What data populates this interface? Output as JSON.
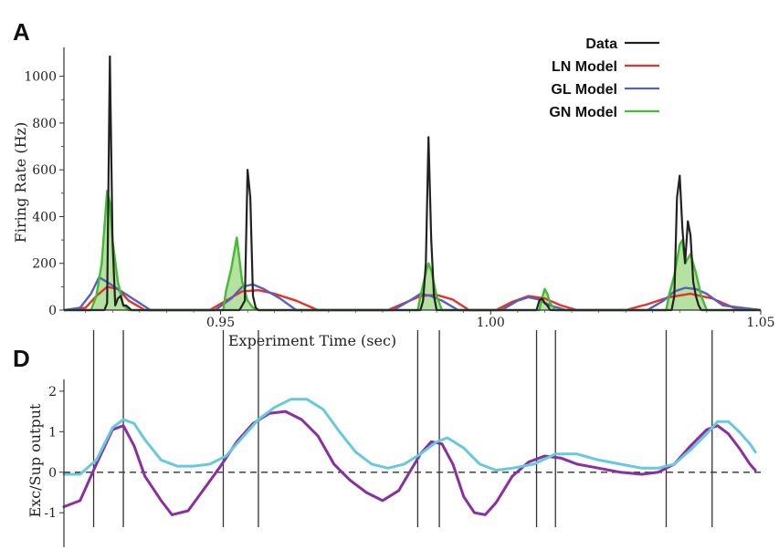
{
  "colors": {
    "data": "#222222",
    "ln": "#e8302a",
    "gl": "#5560c0",
    "gn": "#44bb33",
    "gn_fill": "#a8dc90",
    "exc": "#8a2fa0",
    "sup": "#66c9dd",
    "axis": "#333333"
  },
  "chart_data": [
    {
      "panel": "A",
      "type": "line",
      "xlabel": "Experiment Time (sec)",
      "ylabel": "Firing Rate (Hz)",
      "xlim": [
        0.921,
        1.05
      ],
      "ylim": [
        0,
        1100
      ],
      "x_ticks": [
        0.95,
        1.0,
        1.05
      ],
      "x_tick_labels": [
        "0.95",
        "1.00",
        "1.05"
      ],
      "y_ticks": [
        0,
        200,
        400,
        600,
        800,
        1000
      ],
      "y_tick_labels": [
        "0",
        "200",
        "400",
        "600",
        "800",
        "1000"
      ],
      "legend": {
        "position": "top-right",
        "entries": [
          "Data",
          "LN Model",
          "GL Model",
          "GN Model"
        ]
      },
      "series": [
        {
          "name": "Data",
          "color": "#222222",
          "x": [
            0.9285,
            0.929,
            0.9295,
            0.93,
            0.9305,
            0.931,
            0.9315,
            0.932,
            0.9325,
            0.933,
            0.9335,
            0.9535,
            0.954,
            0.9545,
            0.955,
            0.9555,
            0.956,
            0.9565,
            0.957,
            0.987,
            0.9875,
            0.988,
            0.9885,
            0.989,
            0.9895,
            0.99,
            1.0085,
            1.009,
            1.0095,
            1.01,
            1.0105,
            1.011,
            1.0335,
            1.034,
            1.0345,
            1.035,
            1.0355,
            1.036,
            1.0365,
            1.037,
            1.0375,
            1.038,
            1.0385,
            1.039
          ],
          "y": [
            0,
            30,
            1085,
            300,
            20,
            50,
            60,
            20,
            20,
            10,
            0,
            0,
            20,
            40,
            600,
            480,
            60,
            10,
            0,
            0,
            40,
            200,
            740,
            300,
            60,
            0,
            0,
            40,
            50,
            30,
            20,
            0,
            0,
            60,
            480,
            575,
            350,
            200,
            380,
            320,
            120,
            60,
            20,
            0
          ]
        },
        {
          "name": "LN Model",
          "color": "#e8302a",
          "x": [
            0.921,
            0.925,
            0.927,
            0.929,
            0.931,
            0.933,
            0.936,
            0.948,
            0.951,
            0.954,
            0.957,
            0.96,
            0.964,
            0.968,
            0.981,
            0.984,
            0.987,
            0.99,
            0.993,
            0.996,
            1.001,
            1.004,
            1.007,
            1.01,
            1.013,
            1.016,
            1.025,
            1.029,
            1.033,
            1.037,
            1.041,
            1.045,
            1.05
          ],
          "y": [
            0,
            10,
            60,
            100,
            90,
            40,
            0,
            0,
            40,
            80,
            85,
            70,
            40,
            0,
            0,
            30,
            60,
            65,
            45,
            0,
            0,
            35,
            60,
            50,
            20,
            0,
            0,
            25,
            55,
            70,
            50,
            10,
            0
          ]
        },
        {
          "name": "GL Model",
          "color": "#5560c0",
          "x": [
            0.921,
            0.924,
            0.926,
            0.9275,
            0.929,
            0.931,
            0.933,
            0.935,
            0.937,
            0.949,
            0.952,
            0.954,
            0.956,
            0.958,
            0.961,
            0.964,
            0.982,
            0.985,
            0.987,
            0.989,
            0.991,
            0.994,
            1.002,
            1.005,
            1.007,
            1.009,
            1.011,
            1.014,
            1.029,
            1.032,
            1.034,
            1.036,
            1.038,
            1.04,
            1.043,
            1.05
          ],
          "y": [
            0,
            10,
            70,
            140,
            120,
            90,
            60,
            30,
            0,
            0,
            50,
            100,
            110,
            90,
            50,
            0,
            0,
            40,
            70,
            60,
            40,
            0,
            0,
            40,
            55,
            45,
            20,
            0,
            0,
            40,
            80,
            95,
            90,
            70,
            20,
            0
          ]
        },
        {
          "name": "GN Model",
          "color": "#44bb33",
          "fill": "#a8dc90",
          "x": [
            0.926,
            0.927,
            0.928,
            0.929,
            0.9295,
            0.93,
            0.931,
            0.932,
            0.933,
            0.9505,
            0.951,
            0.952,
            0.953,
            0.954,
            0.955,
            0.956,
            0.957,
            0.9865,
            0.987,
            0.988,
            0.9885,
            0.989,
            0.99,
            0.991,
            1.009,
            1.0095,
            1.01,
            1.0105,
            1.011,
            1.012,
            1.0325,
            1.033,
            1.034,
            1.035,
            1.0355,
            1.036,
            1.037,
            1.038,
            1.039,
            1.04
          ],
          "y": [
            0,
            60,
            200,
            510,
            460,
            300,
            120,
            20,
            0,
            0,
            80,
            180,
            310,
            120,
            40,
            10,
            0,
            0,
            60,
            160,
            200,
            170,
            60,
            0,
            0,
            50,
            90,
            70,
            30,
            0,
            0,
            60,
            150,
            280,
            300,
            200,
            240,
            160,
            60,
            0
          ]
        }
      ]
    },
    {
      "panel": "D",
      "type": "line",
      "xlabel": "",
      "ylabel": "Exc/Sup output",
      "xlim": [
        0.921,
        1.05
      ],
      "ylim": [
        -1.4,
        2.2
      ],
      "y_ticks": [
        -1,
        0,
        1,
        2
      ],
      "y_tick_labels": [
        "-1",
        "0",
        "1",
        "2"
      ],
      "reference_line": 0,
      "vertical_lines_x": [
        0.9265,
        0.932,
        0.9505,
        0.957,
        0.9865,
        0.9905,
        1.0085,
        1.012,
        1.0325,
        1.041
      ],
      "series": [
        {
          "name": "",
          "color": "#8a2fa0",
          "x": [
            0.921,
            0.924,
            0.927,
            0.93,
            0.932,
            0.934,
            0.936,
            0.939,
            0.941,
            0.944,
            0.947,
            0.95,
            0.953,
            0.956,
            0.959,
            0.962,
            0.965,
            0.968,
            0.971,
            0.974,
            0.977,
            0.98,
            0.983,
            0.985,
            0.987,
            0.989,
            0.991,
            0.993,
            0.995,
            0.997,
            0.999,
            1.001,
            1.004,
            1.007,
            1.01,
            1.013,
            1.016,
            1.02,
            1.024,
            1.028,
            1.031,
            1.034,
            1.037,
            1.04,
            1.042,
            1.044,
            1.046,
            1.048,
            1.049
          ],
          "y": [
            -0.85,
            -0.7,
            0.2,
            1.05,
            1.15,
            0.65,
            -0.1,
            -0.7,
            -1.05,
            -0.95,
            -0.4,
            0.15,
            0.75,
            1.2,
            1.45,
            1.5,
            1.3,
            0.9,
            0.2,
            -0.2,
            -0.5,
            -0.7,
            -0.45,
            0.0,
            0.45,
            0.75,
            0.7,
            0.2,
            -0.6,
            -1.0,
            -1.05,
            -0.75,
            -0.1,
            0.25,
            0.4,
            0.35,
            0.2,
            0.1,
            0.0,
            -0.05,
            0.0,
            0.2,
            0.65,
            1.05,
            1.15,
            0.95,
            0.6,
            0.2,
            0.05
          ]
        },
        {
          "name": "",
          "color": "#66c9dd",
          "x": [
            0.921,
            0.924,
            0.927,
            0.93,
            0.932,
            0.934,
            0.936,
            0.939,
            0.942,
            0.945,
            0.948,
            0.951,
            0.954,
            0.957,
            0.96,
            0.963,
            0.966,
            0.969,
            0.972,
            0.975,
            0.978,
            0.981,
            0.984,
            0.987,
            0.99,
            0.992,
            0.995,
            0.998,
            1.001,
            1.004,
            1.008,
            1.012,
            1.016,
            1.02,
            1.024,
            1.028,
            1.031,
            1.034,
            1.037,
            1.04,
            1.042,
            1.044,
            1.046,
            1.048,
            1.049
          ],
          "y": [
            -0.05,
            -0.05,
            0.3,
            1.1,
            1.3,
            1.2,
            0.8,
            0.3,
            0.15,
            0.15,
            0.2,
            0.4,
            0.85,
            1.3,
            1.6,
            1.8,
            1.8,
            1.55,
            1.0,
            0.5,
            0.2,
            0.1,
            0.2,
            0.45,
            0.75,
            0.85,
            0.6,
            0.2,
            0.05,
            0.1,
            0.2,
            0.45,
            0.45,
            0.3,
            0.2,
            0.1,
            0.1,
            0.2,
            0.55,
            0.95,
            1.25,
            1.25,
            1.0,
            0.7,
            0.5
          ]
        }
      ]
    }
  ],
  "panels": {
    "a_letter": "A",
    "d_letter": "D"
  },
  "legend": {
    "data": "Data",
    "ln": "LN Model",
    "gl": "GL Model",
    "gn": "GN Model"
  }
}
